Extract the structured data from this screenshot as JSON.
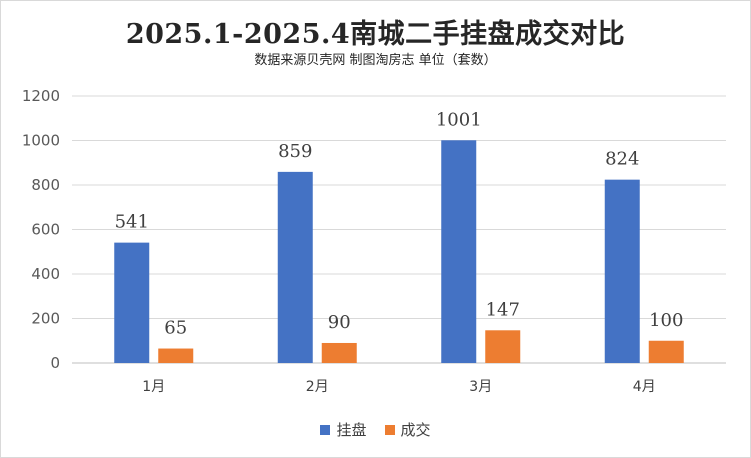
{
  "chart_data": {
    "type": "bar",
    "title": "2025.1-2025.4南城二手挂盘成交对比",
    "subtitle": "数据来源贝壳网 制图淘房志 单位（套数）",
    "categories": [
      "1月",
      "2月",
      "3月",
      "4月"
    ],
    "series": [
      {
        "name": "挂盘",
        "color": "#4472c4",
        "values": [
          541,
          859,
          1001,
          824
        ]
      },
      {
        "name": "成交",
        "color": "#ed7d31",
        "values": [
          65,
          90,
          147,
          100
        ]
      }
    ],
    "ylim": [
      0,
      1200
    ],
    "yticks": [
      0,
      200,
      400,
      600,
      800,
      1000,
      1200
    ],
    "grid": true,
    "legend": "bottom"
  }
}
